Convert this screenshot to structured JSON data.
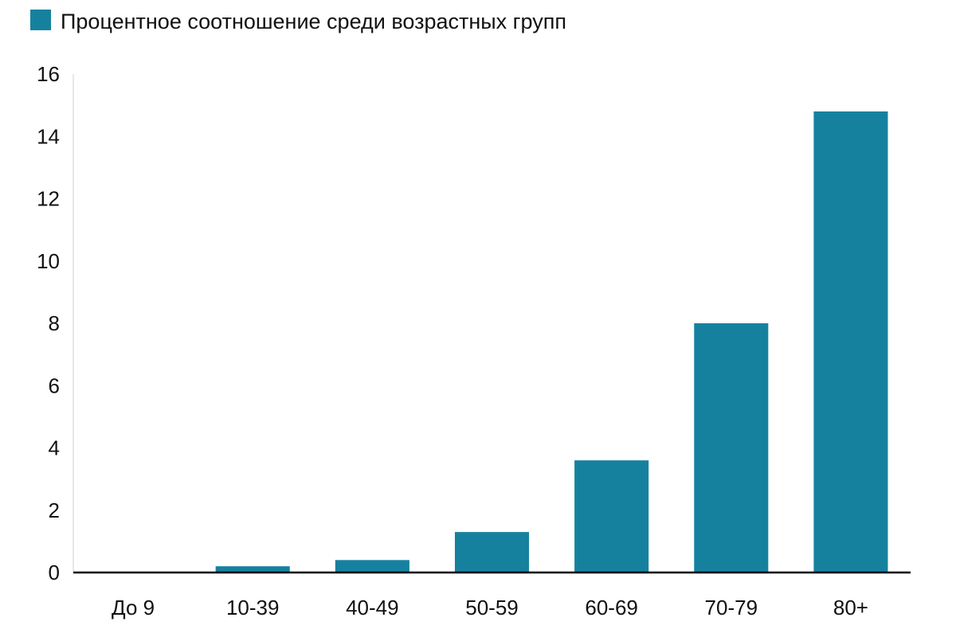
{
  "chart_data": {
    "type": "bar",
    "categories": [
      "До 9",
      "10-39",
      "40-49",
      "50-59",
      "60-69",
      "70-79",
      "80+"
    ],
    "series": [
      {
        "name": "Процентное соотношение среди возрастных групп",
        "values": [
          0,
          0.2,
          0.4,
          1.3,
          3.6,
          8.0,
          14.8
        ]
      }
    ],
    "ylim": [
      0,
      16
    ],
    "yticks": [
      0,
      2,
      4,
      6,
      8,
      10,
      12,
      14,
      16
    ],
    "grid": false,
    "legend_position": "top-left",
    "bar_color": "#16819f",
    "axis_color": "#000000"
  }
}
